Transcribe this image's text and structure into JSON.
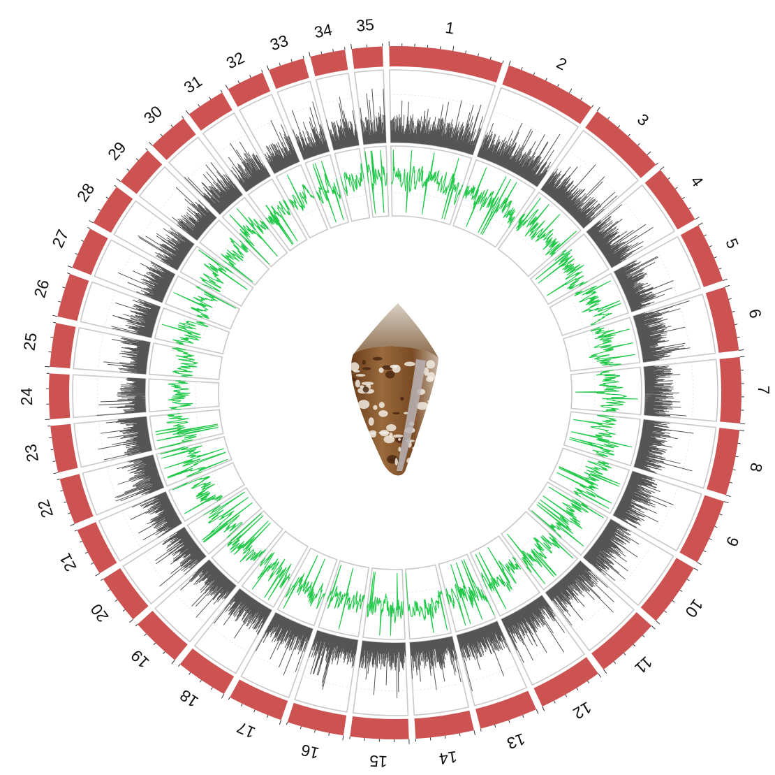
{
  "figure": {
    "type": "circos",
    "chromosomes": [
      "1",
      "2",
      "3",
      "4",
      "5",
      "6",
      "7",
      "8",
      "9",
      "10",
      "11",
      "12",
      "13",
      "14",
      "15",
      "16",
      "17",
      "18",
      "19",
      "20",
      "21",
      "22",
      "23",
      "24",
      "25",
      "26",
      "27",
      "28",
      "29",
      "30",
      "31",
      "32",
      "33",
      "34",
      "35"
    ],
    "relative_lengths": [
      3.9,
      3.15,
      2.7,
      2.05,
      2.05,
      2.2,
      2.25,
      2.25,
      2.25,
      2.2,
      2.2,
      2.2,
      2.0,
      2.0,
      2.0,
      1.95,
      1.9,
      1.8,
      1.75,
      1.7,
      1.65,
      1.6,
      1.6,
      1.55,
      1.5,
      1.5,
      1.45,
      1.45,
      1.4,
      1.4,
      1.35,
      1.3,
      1.25,
      1.2,
      1.05
    ],
    "ideogram_color": "#cd5252",
    "tracks": [
      {
        "type": "histogram",
        "color": "#555555"
      },
      {
        "type": "line",
        "color": "#22c84a"
      }
    ],
    "center_image": "cone-snail-shell"
  }
}
